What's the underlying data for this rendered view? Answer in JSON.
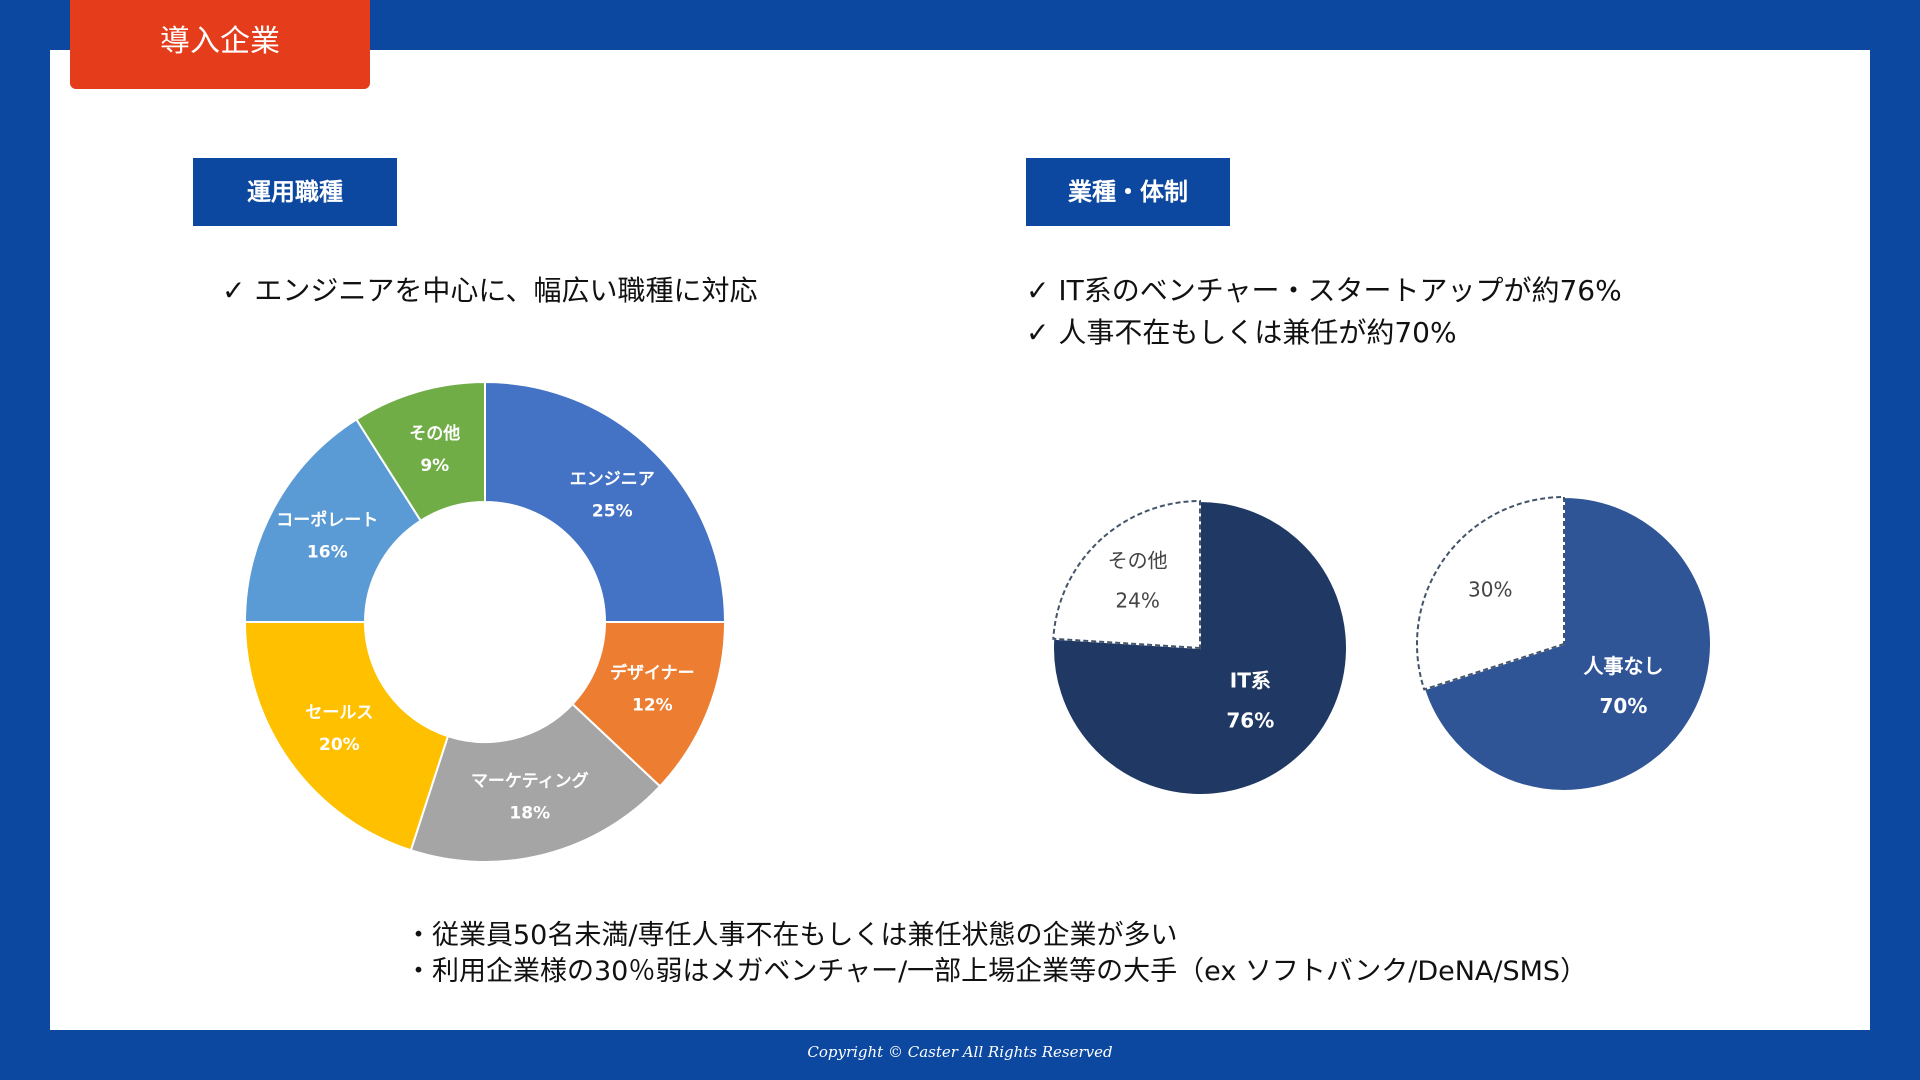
{
  "header": {
    "tab_label": "導入企業"
  },
  "left_section": {
    "label": "運用職種",
    "bullet": "✓ エンジニアを中心に、幅広い職種に対応"
  },
  "right_section": {
    "label": "業種・体制",
    "bullets": [
      "✓ IT系のベンチャー・スタートアップが約76%",
      "✓ 人事不在もしくは兼任が約70%"
    ]
  },
  "notes": [
    "・従業員50名未満/専任人事不在もしくは兼任状態の企業が多い",
    "・利用企業様の30％弱はメガベンチャー/一部上場企業等の大手（ex ソフトバンク/DeNA/SMS）"
  ],
  "footer": {
    "copyright": "Copyright © Caster All Rights Reserved"
  },
  "chart_data": [
    {
      "type": "pie",
      "donut": true,
      "categories": [
        "エンジニア",
        "デザイナー",
        "マーケティング",
        "セールス",
        "コーポレート",
        "その他"
      ],
      "values": [
        25,
        12,
        18,
        20,
        16,
        9
      ],
      "value_labels": [
        "25%",
        "12%",
        "18%",
        "20%",
        "16%",
        "9%"
      ],
      "colors": [
        "#4472c4",
        "#ed7d31",
        "#a5a5a5",
        "#ffc000",
        "#5b9bd5",
        "#70ad47"
      ]
    },
    {
      "type": "pie",
      "categories": [
        "IT系",
        "その他"
      ],
      "values": [
        76,
        24
      ],
      "value_labels": [
        "76%",
        "24%"
      ],
      "colors": [
        "#203864",
        "#ffffff"
      ]
    },
    {
      "type": "pie",
      "categories": [
        "人事なし",
        ""
      ],
      "values": [
        70,
        30
      ],
      "value_labels": [
        "70%",
        "30%"
      ],
      "colors": [
        "#2f5597",
        "#ffffff"
      ]
    }
  ]
}
